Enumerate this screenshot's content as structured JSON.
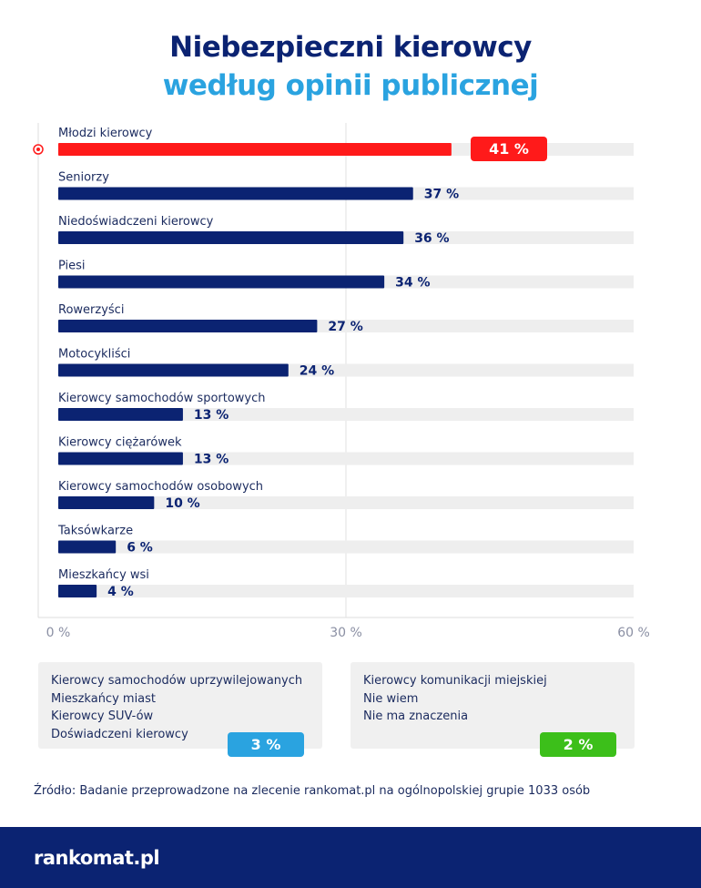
{
  "title_line1": "Niebezpieczni kierowcy",
  "title_line2": "według opinii publicznej",
  "chart_data": {
    "type": "bar",
    "orientation": "horizontal",
    "categories": [
      "Młodzi kierowcy",
      "Seniorzy",
      "Niedoświadczeni kierowcy",
      "Piesi",
      "Rowerzyści",
      "Motocykliści",
      "Kierowcy samochodów sportowych",
      "Kierowcy ciężarówek",
      "Kierowcy samochodów osobowych",
      "Taksówkarze",
      "Mieszkańcy wsi"
    ],
    "values": [
      41,
      37,
      36,
      34,
      27,
      24,
      13,
      13,
      10,
      6,
      4
    ],
    "value_labels": [
      "41 %",
      "37 %",
      "36 %",
      "34 %",
      "27 %",
      "24 %",
      "13 %",
      "13 %",
      "10 %",
      "6 %",
      "4 %"
    ],
    "highlight_index": 0,
    "xlim": [
      0,
      60
    ],
    "xticks": [
      0,
      30,
      60
    ],
    "xtick_labels": [
      "0 %",
      "30 %",
      "60 %"
    ],
    "colors": {
      "highlight": "#ff1a1a",
      "bar": "#0b2372",
      "track": "#eeeeee"
    }
  },
  "groups": [
    {
      "items": [
        "Kierowcy samochodów uprzywilejowanych",
        "Mieszkańcy miast",
        "Kierowcy SUV-ów",
        "Doświadczeni kierowcy"
      ],
      "value": "3 %",
      "color": "#2aa3e0"
    },
    {
      "items": [
        "Kierowcy komunikacji miejskiej",
        "Nie wiem",
        "Nie ma znaczenia"
      ],
      "value": "2 %",
      "color": "#3cbf1a"
    }
  ],
  "source": "Źródło: Badanie przeprowadzone na zlecenie rankomat.pl na ogólnopolskiej grupie 1033 osób",
  "logo": "rankomat.pl"
}
